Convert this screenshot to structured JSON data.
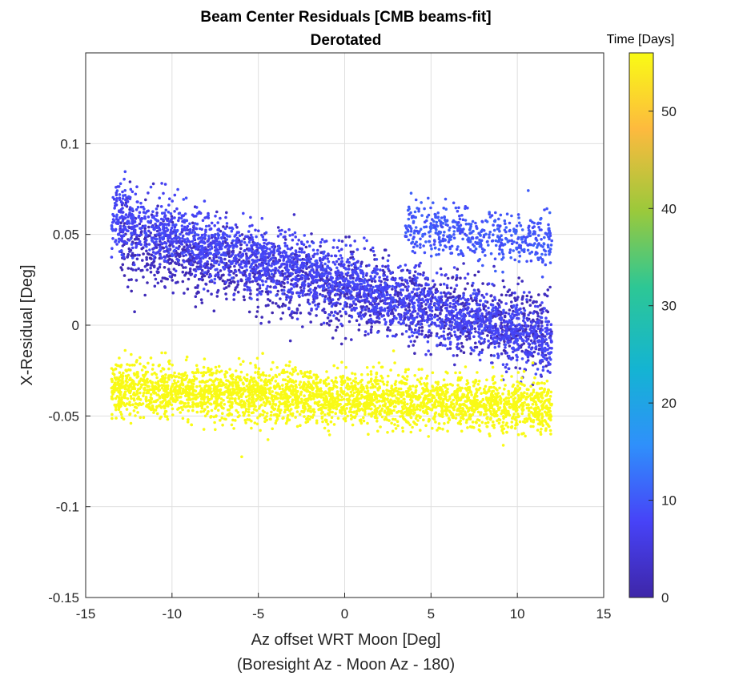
{
  "chart_data": {
    "type": "scatter",
    "title": "Beam Center Residuals [CMB beams-fit]",
    "subtitle": "Derotated",
    "xlabel": "Az offset WRT Moon [Deg]",
    "xlabel2": "(Boresight Az - Moon Az - 180)",
    "ylabel": "X-Residual [Deg]",
    "xlim": [
      -15,
      15
    ],
    "ylim": [
      -0.15,
      0.15
    ],
    "xticks": [
      -15,
      -10,
      -5,
      0,
      5,
      10,
      15
    ],
    "xtick_labels": [
      "-15",
      "-10",
      "-5",
      "0",
      "5",
      "10",
      "15"
    ],
    "yticks": [
      -0.15,
      -0.1,
      -0.05,
      0,
      0.05,
      0.1
    ],
    "ytick_labels": [
      "-0.15",
      "-0.1",
      "-0.05",
      "0",
      "0.05",
      "0.1"
    ],
    "grid": true,
    "colorbar": {
      "label": "Time [Days]",
      "range": [
        0,
        56
      ],
      "ticks": [
        0,
        10,
        20,
        30,
        40,
        50
      ],
      "tick_labels": [
        "0",
        "10",
        "20",
        "30",
        "40",
        "50"
      ],
      "colormap": [
        "#3e26a8",
        "#4743f8",
        "#2f90fb",
        "#14b4d2",
        "#2dc795",
        "#9bc93b",
        "#fdba3e",
        "#f9fb15"
      ]
    },
    "clusters": [
      {
        "time": 2,
        "x_range": [
          -13,
          12
        ],
        "y_start": 0.045,
        "y_end": -0.005,
        "spread": 0.018,
        "count": 1800
      },
      {
        "time": 8,
        "x_range": [
          -13.5,
          12
        ],
        "y_start": 0.06,
        "y_end": -0.01,
        "spread": 0.015,
        "count": 2400
      },
      {
        "time": 10,
        "x_range": [
          3.5,
          12
        ],
        "y_start": 0.055,
        "y_end": 0.045,
        "spread": 0.012,
        "count": 500
      },
      {
        "time": 56,
        "x_range": [
          -13.5,
          12
        ],
        "y_start": -0.035,
        "y_end": -0.045,
        "spread": 0.012,
        "count": 3200
      }
    ]
  }
}
